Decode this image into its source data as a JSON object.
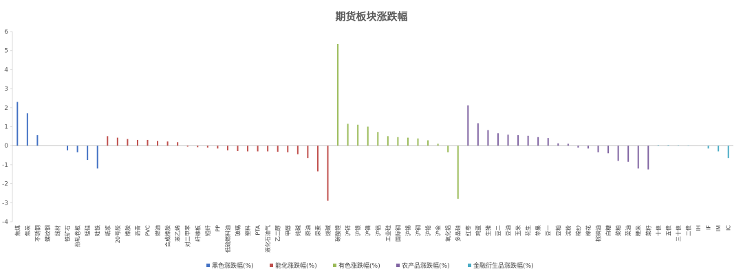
{
  "chart_data": {
    "type": "bar",
    "title": "期货板块涨跌幅",
    "xlabel": "",
    "ylabel": "",
    "ylim": [
      -4,
      6
    ],
    "yticks": [
      -4,
      -3,
      -2,
      -1,
      0,
      1,
      2,
      3,
      4,
      5,
      6
    ],
    "grid": false,
    "legend_position": "bottom",
    "colors": {
      "黑色涨跌幅(%)": "#4472C4",
      "能化涨跌幅(%)": "#C0504D",
      "有色涨跌幅(%)": "#9BBB59",
      "农产品涨跌幅(%)": "#8064A2",
      "金融衍生品涨跌幅(%)": "#4BACC6"
    },
    "series": [
      {
        "name": "黑色涨跌幅(%)",
        "categories": [
          "焦煤",
          "焦炭",
          "不锈钢",
          "螺纹钢",
          "线材",
          "铁矿石",
          "热轧卷板",
          "锰硅",
          "硅铁"
        ],
        "values": [
          2.3,
          1.7,
          0.55,
          0,
          0,
          -0.25,
          -0.35,
          -0.75,
          -1.2
        ]
      },
      {
        "name": "能化涨跌幅(%)",
        "categories": [
          "纸浆",
          "20号胶",
          "橡胶",
          "沥青",
          "PVC",
          "燃油",
          "合成橡胶",
          "苯乙烯",
          "对二甲苯",
          "纤维板",
          "短纤",
          "PP",
          "低硫燃料油",
          "玻璃",
          "塑料",
          "PTA",
          "液化石油气",
          "乙二醇",
          "甲醇",
          "纯碱",
          "原油",
          "尿素",
          "烧碱"
        ],
        "values": [
          0.5,
          0.42,
          0.35,
          0.3,
          0.3,
          0.25,
          0.22,
          0.18,
          -0.05,
          -0.08,
          -0.1,
          -0.15,
          -0.25,
          -0.28,
          -0.3,
          -0.3,
          -0.3,
          -0.32,
          -0.35,
          -0.45,
          -0.65,
          -1.35,
          -2.9
        ]
      },
      {
        "name": "有色涨跌幅(%)",
        "categories": [
          "碳酸锂",
          "沪锌",
          "沪银",
          "沪镍",
          "沪铝",
          "工业硅",
          "国际铜",
          "沪锡",
          "沪铜",
          "沪铅",
          "沪金",
          "氧化铝",
          "多晶硅"
        ],
        "values": [
          5.35,
          1.15,
          1.1,
          1.0,
          0.72,
          0.5,
          0.45,
          0.42,
          0.38,
          0.28,
          0.1,
          -0.35,
          -2.8
        ]
      },
      {
        "name": "农产品涨跌幅(%)",
        "categories": [
          "红枣",
          "鸡蛋",
          "生猪",
          "豆二",
          "豆油",
          "玉米",
          "花生",
          "苹果",
          "豆一",
          "豆粕",
          "淀粉",
          "棉纱",
          "棉花",
          "棕榈油",
          "白糖",
          "菜粕",
          "菜油",
          "粳米",
          "菜籽"
        ],
        "values": [
          2.12,
          1.18,
          0.82,
          0.65,
          0.58,
          0.55,
          0.52,
          0.45,
          0.4,
          0.12,
          0.1,
          -0.1,
          -0.15,
          -0.35,
          -0.4,
          -0.8,
          -0.85,
          -1.2,
          -1.25
        ]
      },
      {
        "name": "金融衍生品涨跌幅(%)",
        "categories": [
          "十债",
          "五债",
          "三十债",
          "二债",
          "IH",
          "IF",
          "IM",
          "IC"
        ],
        "values": [
          0.03,
          0.03,
          0.02,
          0.01,
          0,
          -0.15,
          -0.3,
          -0.65
        ]
      }
    ]
  }
}
